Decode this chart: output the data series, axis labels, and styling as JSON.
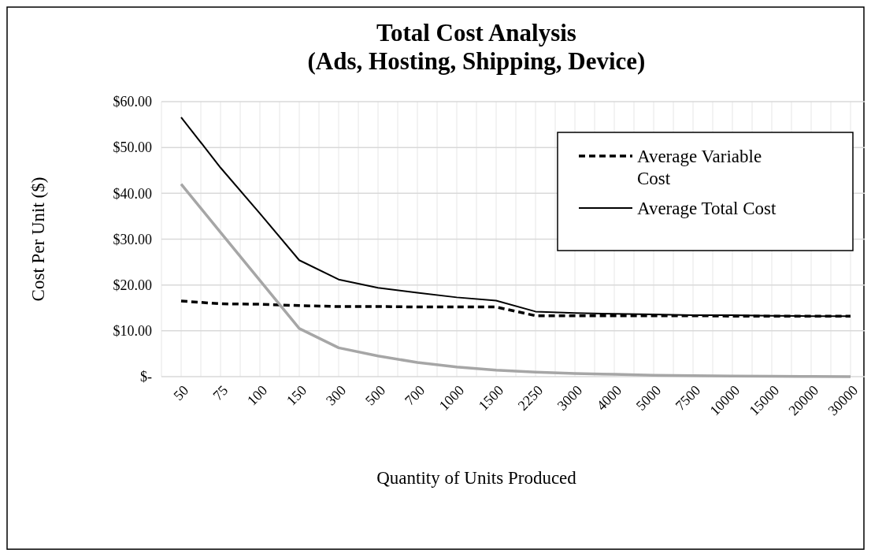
{
  "chart_data": {
    "type": "line",
    "title": "Total Cost Analysis\n(Ads, Hosting, Shipping, Device)",
    "xlabel": "Quantity of Units Produced",
    "ylabel": "Cost Per Unit ($)",
    "categories": [
      "50",
      "75",
      "100",
      "150",
      "300",
      "500",
      "700",
      "1000",
      "1500",
      "2250",
      "3000",
      "4000",
      "5000",
      "7500",
      "10000",
      "15000",
      "20000",
      "30000"
    ],
    "series": [
      {
        "name": "Average Variable Cost",
        "color": "#000000",
        "line_style": "dashed",
        "values": [
          16.5,
          15.9,
          15.8,
          15.5,
          15.3,
          15.3,
          15.2,
          15.2,
          15.2,
          13.3,
          13.3,
          13.3,
          13.3,
          13.3,
          13.2,
          13.2,
          13.2,
          13.2
        ]
      },
      {
        "name": "Average Total Cost",
        "color": "#000000",
        "line_style": "solid",
        "values": [
          56.6,
          45.6,
          35.6,
          25.4,
          21.2,
          19.4,
          18.3,
          17.3,
          16.6,
          14.2,
          13.9,
          13.7,
          13.6,
          13.4,
          13.4,
          13.3,
          13.2,
          13.2
        ]
      },
      {
        "color": "#a6a6a6",
        "line_style": "solid",
        "values": [
          42.0,
          31.5,
          21.0,
          10.5,
          6.3,
          4.5,
          3.1,
          2.1,
          1.4,
          1.0,
          0.7,
          0.5,
          0.3,
          0.2,
          0.15,
          0.1,
          0.05,
          0.0
        ]
      }
    ],
    "ylim": [
      0,
      60
    ],
    "yticks": [
      {
        "value": 0,
        "label": "$-"
      },
      {
        "value": 10,
        "label": "$10.00"
      },
      {
        "value": 20,
        "label": "$20.00"
      },
      {
        "value": 30,
        "label": "$30.00"
      },
      {
        "value": 40,
        "label": "$40.00"
      },
      {
        "value": 50,
        "label": "$50.00"
      },
      {
        "value": 60,
        "label": "$60.00"
      }
    ],
    "grid": true,
    "legend": "top right"
  }
}
